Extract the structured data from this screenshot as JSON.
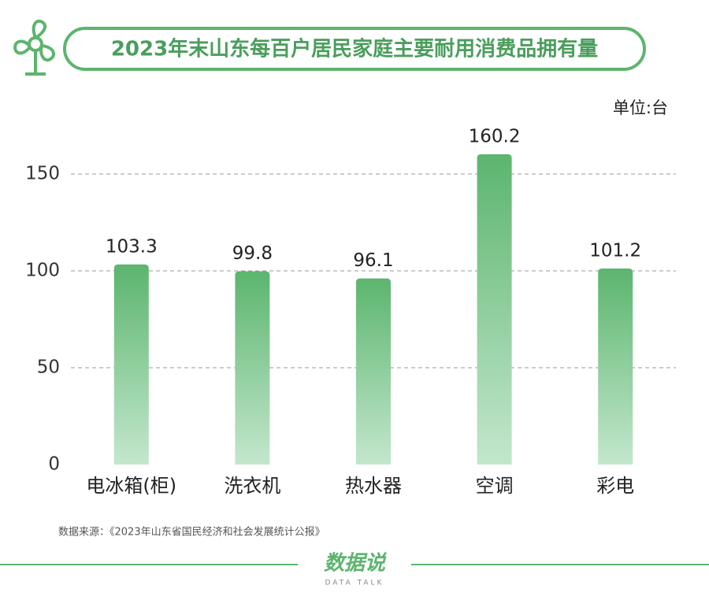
{
  "chart_data": {
    "type": "bar",
    "title": "2023年末山东每百户居民家庭主要耐用消费品拥有量",
    "unit": "单位:台",
    "categories": [
      "电冰箱(柜)",
      "洗衣机",
      "热水器",
      "空调",
      "彩电"
    ],
    "values": [
      103.3,
      99.8,
      96.1,
      160.2,
      101.2
    ],
    "color": "#5cb56e",
    "ylim": [
      0,
      170
    ],
    "yticks": [
      0,
      50,
      100,
      150
    ],
    "grid": true,
    "source": "数据来源：《2023年山东省国民经济和社会发展统计公报》",
    "brand": {
      "name": "数据说",
      "tagline": "DATA TALK"
    }
  }
}
